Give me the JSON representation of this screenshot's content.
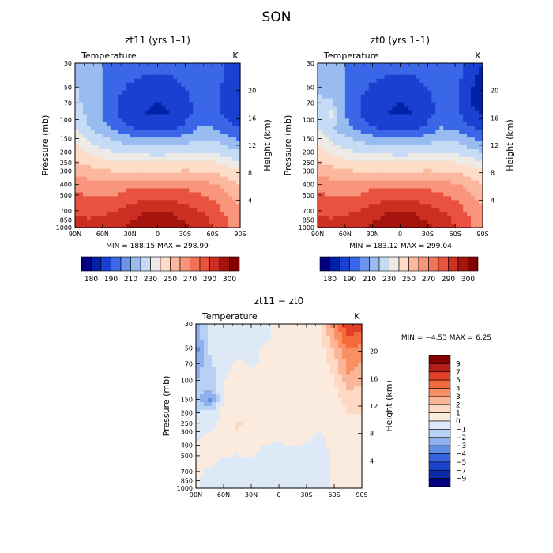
{
  "page_title": "SON",
  "colors": {
    "abs": [
      "#000080",
      "#0022a6",
      "#1a40d2",
      "#3a66e8",
      "#6a94ee",
      "#98bcf0",
      "#c5dbf6",
      "#eeeae6",
      "#fddcc8",
      "#fcb89e",
      "#f9957c",
      "#f37358",
      "#e8523e",
      "#cc2e22",
      "#a5150e",
      "#800000"
    ],
    "diff": [
      "#800000",
      "#b51e16",
      "#e23f26",
      "#f46a3a",
      "#f99064",
      "#fbb598",
      "#fdd9c4",
      "#fbeade",
      "#dde9f7",
      "#b8d0f3",
      "#8fb0ef",
      "#5f8ee6",
      "#3664dd",
      "#1a44cf",
      "#0c2ba8",
      "#000080"
    ]
  },
  "chart_data": [
    {
      "type": "heatmap",
      "title": "zt11  (yrs 1–1)",
      "subtitle": "Temperature",
      "units": "K",
      "xlabel": "",
      "ylabel": "Pressure  (mb)",
      "ylabel_right": "Height  (km)",
      "x_ticks": [
        "90N",
        "60N",
        "30N",
        "0",
        "30S",
        "60S",
        "90S"
      ],
      "y_ticks": [
        "30",
        "50",
        "70",
        "100",
        "150",
        "200",
        "250",
        "300",
        "400",
        "500",
        "700",
        "850",
        "1000"
      ],
      "y_right_ticks": [
        "20",
        "16",
        "12",
        "8",
        "4"
      ],
      "stats": "MIN = 188.15   MAX = 298.99",
      "colorbar_labels": [
        "180",
        "190",
        "210",
        "230",
        "250",
        "270",
        "290",
        "300"
      ],
      "field": [
        [
          217,
          212,
          210,
          210,
          207,
          205,
          205,
          205,
          207,
          210,
          208,
          200,
          194
        ],
        [
          219,
          214,
          210,
          206,
          202,
          200,
          200,
          200,
          203,
          208,
          207,
          198,
          192
        ],
        [
          221,
          215,
          210,
          203,
          198,
          196,
          196,
          196,
          200,
          206,
          205,
          197,
          191
        ],
        [
          223,
          216,
          209,
          200,
          194,
          191,
          190,
          191,
          197,
          204,
          204,
          196,
          190
        ],
        [
          226,
          218,
          209,
          200,
          194,
          190,
          189,
          190,
          196,
          204,
          205,
          198,
          193
        ],
        [
          229,
          220,
          213,
          206,
          200,
          196,
          195,
          196,
          202,
          209,
          210,
          203,
          199
        ],
        [
          236,
          228,
          222,
          217,
          214,
          211,
          211,
          211,
          215,
          219,
          219,
          213,
          209
        ],
        [
          244,
          237,
          232,
          229,
          227,
          226,
          225,
          226,
          228,
          230,
          229,
          224,
          220
        ],
        [
          253,
          248,
          245,
          243,
          242,
          242,
          242,
          242,
          243,
          243,
          242,
          238,
          234
        ],
        [
          262,
          258,
          256,
          256,
          257,
          257,
          257,
          257,
          257,
          256,
          255,
          250,
          245
        ],
        [
          270,
          267,
          266,
          267,
          270,
          271,
          272,
          271,
          270,
          268,
          265,
          259,
          252
        ],
        [
          275,
          273,
          273,
          275,
          278,
          281,
          282,
          281,
          278,
          275,
          271,
          265,
          258
        ],
        [
          280,
          279,
          280,
          283,
          287,
          291,
          293,
          291,
          287,
          283,
          277,
          270,
          262
        ],
        [
          283,
          283,
          284,
          288,
          292,
          296,
          298,
          296,
          292,
          287,
          280,
          272,
          264
        ]
      ]
    },
    {
      "type": "heatmap",
      "title": "zt0  (yrs 1–1)",
      "subtitle": "Temperature",
      "units": "K",
      "xlabel": "",
      "ylabel": "Pressure  (mb)",
      "ylabel_right": "Height  (km)",
      "x_ticks": [
        "90N",
        "60N",
        "30N",
        "0",
        "30S",
        "60S",
        "90S"
      ],
      "y_ticks": [
        "30",
        "50",
        "70",
        "100",
        "150",
        "200",
        "250",
        "300",
        "400",
        "500",
        "700",
        "850",
        "1000"
      ],
      "y_right_ticks": [
        "20",
        "16",
        "12",
        "8",
        "4"
      ],
      "stats": "MIN = 183.12   MAX = 299.04",
      "colorbar_labels": [
        "180",
        "190",
        "210",
        "230",
        "250",
        "270",
        "290",
        "300"
      ],
      "field": [
        [
          216,
          212,
          210,
          210,
          207,
          205,
          205,
          205,
          207,
          210,
          206,
          196,
          190
        ],
        [
          218,
          213,
          210,
          206,
          202,
          200,
          200,
          200,
          203,
          208,
          205,
          194,
          187
        ],
        [
          219,
          214,
          210,
          203,
          198,
          196,
          196,
          196,
          200,
          206,
          203,
          192,
          185
        ],
        [
          222,
          221,
          209,
          200,
          194,
          191,
          190,
          191,
          197,
          204,
          202,
          191,
          184
        ],
        [
          226,
          232,
          210,
          200,
          194,
          190,
          189,
          190,
          196,
          204,
          203,
          194,
          188
        ],
        [
          229,
          221,
          213,
          206,
          200,
          196,
          195,
          196,
          202,
          209,
          208,
          200,
          196
        ],
        [
          236,
          228,
          222,
          217,
          214,
          211,
          211,
          211,
          215,
          219,
          218,
          211,
          207
        ],
        [
          244,
          237,
          232,
          229,
          227,
          226,
          225,
          226,
          228,
          230,
          228,
          223,
          219
        ],
        [
          253,
          248,
          245,
          243,
          242,
          242,
          242,
          242,
          243,
          243,
          242,
          238,
          234
        ],
        [
          262,
          258,
          256,
          256,
          257,
          257,
          257,
          257,
          257,
          256,
          255,
          250,
          245
        ],
        [
          270,
          267,
          266,
          267,
          270,
          271,
          272,
          271,
          270,
          268,
          265,
          259,
          252
        ],
        [
          275,
          273,
          273,
          275,
          278,
          281,
          282,
          281,
          278,
          275,
          271,
          265,
          258
        ],
        [
          280,
          279,
          280,
          283,
          287,
          291,
          293,
          291,
          287,
          283,
          277,
          270,
          262
        ],
        [
          283,
          283,
          284,
          288,
          292,
          296,
          298,
          296,
          292,
          287,
          280,
          272,
          264
        ]
      ]
    },
    {
      "type": "heatmap",
      "title": "zt11 − zt0",
      "subtitle": "Temperature",
      "units": "K",
      "xlabel": "",
      "ylabel": "Pressure  (mb)",
      "ylabel_right": "Height  (km)",
      "x_ticks": [
        "90N",
        "60N",
        "30N",
        "0",
        "30S",
        "60S",
        "90S"
      ],
      "y_ticks": [
        "30",
        "50",
        "70",
        "100",
        "150",
        "200",
        "250",
        "300",
        "400",
        "500",
        "700",
        "850",
        "1000"
      ],
      "y_right_ticks": [
        "20",
        "16",
        "12",
        "8",
        "4"
      ],
      "stats": "MIN =   −4.53   MAX =    6.25",
      "colorbar_labels": [
        "9",
        "7",
        "5",
        "4",
        "3",
        "2",
        "1",
        "0",
        "−1",
        "−2",
        "−3",
        "−4",
        "−5",
        "−7",
        "−9"
      ],
      "field": [
        [
          -2.5,
          -0.5,
          -0.2,
          -0.3,
          -0.2,
          -0.1,
          0.2,
          0.8,
          0.9,
          0.8,
          3.5,
          6.0,
          5.5
        ],
        [
          -3.0,
          -0.5,
          -0.3,
          -0.2,
          -0.2,
          -0.1,
          0.2,
          0.7,
          0.8,
          0.8,
          2.8,
          5.0,
          4.5
        ],
        [
          -3.5,
          -0.8,
          -0.3,
          -0.2,
          -0.2,
          0.1,
          0.3,
          0.5,
          0.6,
          0.5,
          2.2,
          4.0,
          3.5
        ],
        [
          -2.8,
          -1.2,
          -0.2,
          0.1,
          -0.2,
          0.2,
          0.3,
          0.5,
          0.4,
          0.3,
          1.5,
          3.5,
          3.0
        ],
        [
          -2.2,
          -1.5,
          -0.1,
          0.2,
          0.3,
          0.2,
          0.4,
          0.6,
          0.3,
          0.2,
          1.2,
          3.0,
          2.5
        ],
        [
          -1.8,
          -1.5,
          0.2,
          0.4,
          0.3,
          0.2,
          0.5,
          0.6,
          0.4,
          0.3,
          0.8,
          2.2,
          1.8
        ],
        [
          -1.5,
          -3.5,
          0.3,
          0.3,
          0.5,
          0.4,
          0.6,
          0.6,
          0.5,
          0.3,
          0.6,
          1.5,
          1.2
        ],
        [
          -1.0,
          -0.8,
          0.3,
          0.4,
          0.5,
          0.4,
          0.5,
          0.4,
          0.3,
          0.2,
          0.5,
          1.0,
          1.0
        ],
        [
          -0.5,
          -0.3,
          0.4,
          1.2,
          0.8,
          0.3,
          0.2,
          0.3,
          0.2,
          0.1,
          0.4,
          0.7,
          0.7
        ],
        [
          -0.2,
          0.2,
          0.3,
          0.6,
          0.4,
          0.2,
          0.1,
          0.2,
          0.1,
          -0.1,
          0.3,
          0.5,
          0.5
        ],
        [
          0.2,
          0.3,
          0.2,
          0.1,
          0.2,
          -0.2,
          -0.2,
          -0.1,
          -0.2,
          -0.3,
          0.2,
          0.4,
          0.4
        ],
        [
          0.3,
          0.2,
          -0.2,
          -0.2,
          -0.2,
          -0.3,
          -0.2,
          -0.3,
          -0.3,
          -0.3,
          0.1,
          0.3,
          0.3
        ],
        [
          0.2,
          -0.3,
          -0.3,
          -0.2,
          -0.2,
          -0.3,
          -0.2,
          -0.2,
          -0.3,
          -0.2,
          0.1,
          0.2,
          0.2
        ],
        [
          0.1,
          -0.3,
          -0.3,
          -0.2,
          -0.2,
          -0.2,
          -0.2,
          -0.2,
          -0.2,
          -0.2,
          0.1,
          0.1,
          0.2
        ]
      ]
    }
  ]
}
